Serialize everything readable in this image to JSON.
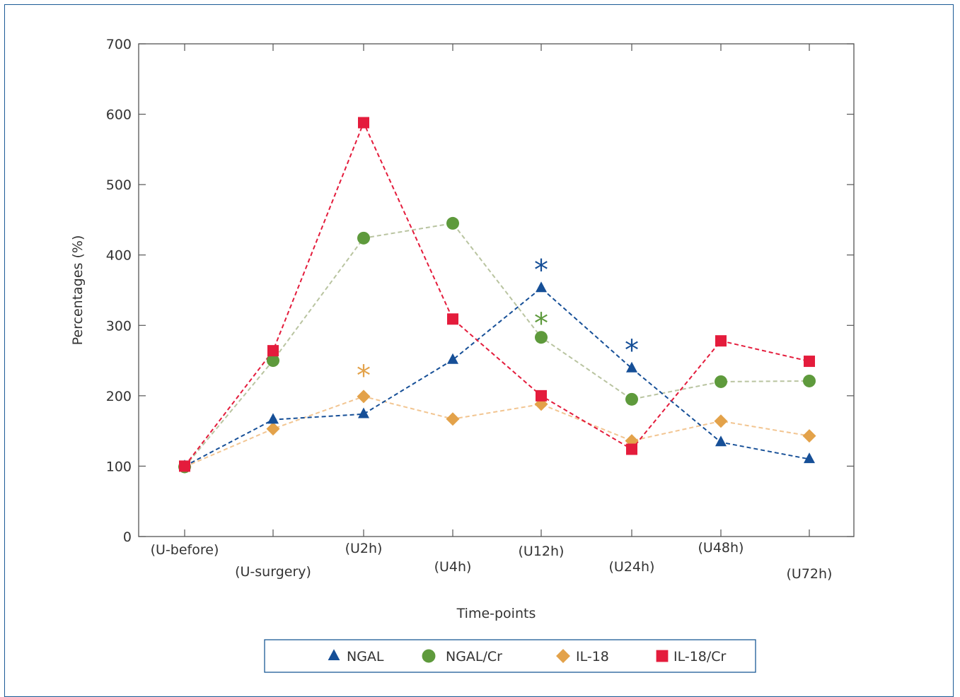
{
  "chart_data": {
    "type": "line",
    "xlabel": "Time-points",
    "ylabel": "Percentages (%)",
    "ylim": [
      0,
      700
    ],
    "yticks": [
      0,
      100,
      200,
      300,
      400,
      500,
      600,
      700
    ],
    "grid": false,
    "legend_position": "bottom",
    "categories": [
      "(U-before)",
      "(U-surgery)",
      "(U2h)",
      "(U4h)",
      "(U12h)",
      "(U24h)",
      "(U48h)",
      "(U72h)"
    ],
    "series": [
      {
        "name": "NGAL",
        "marker": "triangle",
        "color": "#164f97",
        "line_color": "#164f97",
        "values": [
          100,
          166,
          174,
          251,
          353,
          239,
          134,
          110
        ]
      },
      {
        "name": "NGAL/Cr",
        "marker": "circle",
        "color": "#5e9a3c",
        "line_color": "#b9c4a0",
        "values": [
          99,
          250,
          424,
          445,
          283,
          195,
          220,
          221
        ]
      },
      {
        "name": "IL-18",
        "marker": "diamond",
        "color": "#e3a24a",
        "line_color": "#f2c591",
        "values": [
          99,
          153,
          199,
          167,
          188,
          136,
          164,
          143
        ]
      },
      {
        "name": "IL-18/Cr",
        "marker": "square",
        "color": "#e41c3c",
        "line_color": "#e41c3c",
        "values": [
          100,
          264,
          588,
          309,
          200,
          124,
          278,
          249
        ]
      }
    ],
    "annotations": [
      {
        "text": "*",
        "series": "NGAL",
        "category": "(U12h)",
        "color": "#164f97"
      },
      {
        "text": "*",
        "series": "NGAL/Cr",
        "category": "(U12h)",
        "color": "#5e9a3c"
      },
      {
        "text": "*",
        "series": "NGAL",
        "category": "(U24h)",
        "color": "#164f97"
      },
      {
        "text": "*",
        "series": "IL-18",
        "category": "(U2h)",
        "color": "#e3a24a"
      }
    ]
  }
}
